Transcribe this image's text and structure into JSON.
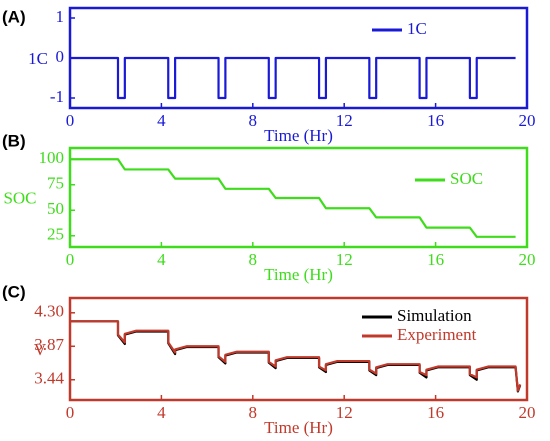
{
  "chart_data": [
    {
      "type": "line",
      "title": "(A)",
      "x_label": "Time (Hr)",
      "y_label": "1C",
      "color": "#1a1ad6",
      "legend": "upper right",
      "xlim": [
        0,
        20
      ],
      "xticks": [
        0,
        4,
        8,
        12,
        16,
        20
      ],
      "ylim": [
        -1.25,
        1.25
      ],
      "yticks": [
        1,
        0,
        -1
      ],
      "x": [
        0,
        2.1,
        2.1,
        2.4,
        2.4,
        4.3,
        4.3,
        4.6,
        4.6,
        6.5,
        6.5,
        6.8,
        6.8,
        8.7,
        8.7,
        9.0,
        9.0,
        10.9,
        10.9,
        11.2,
        11.2,
        13.1,
        13.1,
        13.4,
        13.4,
        15.3,
        15.3,
        15.6,
        15.6,
        17.5,
        17.5,
        17.8,
        17.8,
        19.5
      ],
      "series": [
        {
          "name": "1C",
          "color": "#1a1ad6",
          "values": [
            0,
            0,
            -1,
            -1,
            0,
            0,
            -1,
            -1,
            0,
            0,
            -1,
            -1,
            0,
            0,
            -1,
            -1,
            0,
            0,
            -1,
            -1,
            0,
            0,
            -1,
            -1,
            0,
            0,
            -1,
            -1,
            0,
            0,
            -1,
            -1,
            0,
            0
          ]
        }
      ]
    },
    {
      "type": "line",
      "title": "(B)",
      "x_label": "Time (Hr)",
      "y_label": "SOC",
      "color": "#3fdc1c",
      "legend": "upper right",
      "xlim": [
        0,
        20
      ],
      "xticks": [
        0,
        4,
        8,
        12,
        16,
        20
      ],
      "ylim": [
        14,
        111
      ],
      "yticks": [
        100,
        75,
        50,
        25
      ],
      "x": [
        0,
        2.1,
        2.4,
        4.3,
        4.6,
        6.5,
        6.8,
        8.7,
        9.0,
        10.9,
        11.2,
        13.1,
        13.4,
        15.3,
        15.6,
        17.5,
        17.8,
        19.5
      ],
      "series": [
        {
          "name": "SOC",
          "color": "#3fdc1c",
          "values": [
            100,
            100,
            90,
            90,
            81,
            81,
            71,
            71,
            62,
            62,
            52,
            52,
            43,
            43,
            33,
            33,
            24,
            24
          ]
        }
      ]
    },
    {
      "type": "line",
      "title": "(C)",
      "x_label": "Time (Hr)",
      "y_label": "V",
      "color": "#c0392b",
      "legend": "upper right",
      "xlim": [
        0,
        20
      ],
      "xticks": [
        0,
        4,
        8,
        12,
        16,
        20
      ],
      "ylim": [
        3.18,
        4.49
      ],
      "yticks": [
        {
          "value": 4.3,
          "label": "4.30"
        },
        3.87,
        3.44
      ],
      "x": [
        0,
        2.1,
        2.1,
        2.4,
        2.4,
        2.9,
        4.3,
        4.3,
        4.6,
        4.6,
        5.1,
        6.5,
        6.5,
        6.8,
        6.8,
        7.3,
        8.7,
        8.7,
        9.0,
        9.0,
        9.5,
        10.9,
        10.9,
        11.2,
        11.2,
        11.7,
        13.1,
        13.1,
        13.4,
        13.4,
        13.9,
        15.3,
        15.3,
        15.6,
        15.6,
        16.1,
        17.5,
        17.5,
        17.8,
        17.8,
        18.3,
        19.5,
        19.6,
        19.7
      ],
      "series": [
        {
          "name": "Simulation",
          "color": "#000000",
          "values": [
            4.19,
            4.19,
            4.01,
            3.9,
            4.02,
            4.06,
            4.06,
            3.91,
            3.77,
            3.82,
            3.86,
            3.86,
            3.73,
            3.65,
            3.75,
            3.79,
            3.79,
            3.66,
            3.59,
            3.68,
            3.72,
            3.72,
            3.6,
            3.54,
            3.63,
            3.67,
            3.67,
            3.56,
            3.5,
            3.59,
            3.63,
            3.63,
            3.53,
            3.47,
            3.56,
            3.6,
            3.6,
            3.5,
            3.44,
            3.56,
            3.6,
            3.6,
            3.29,
            3.37
          ]
        },
        {
          "name": "Experiment",
          "color": "#c0392b",
          "values": [
            4.19,
            4.19,
            4.02,
            3.92,
            4.03,
            4.07,
            4.07,
            3.92,
            3.79,
            3.83,
            3.87,
            3.87,
            3.74,
            3.67,
            3.76,
            3.8,
            3.8,
            3.67,
            3.61,
            3.69,
            3.73,
            3.73,
            3.61,
            3.56,
            3.64,
            3.68,
            3.68,
            3.57,
            3.52,
            3.6,
            3.64,
            3.64,
            3.54,
            3.5,
            3.57,
            3.61,
            3.61,
            3.51,
            3.47,
            3.57,
            3.61,
            3.61,
            3.3,
            3.38
          ]
        }
      ]
    }
  ]
}
